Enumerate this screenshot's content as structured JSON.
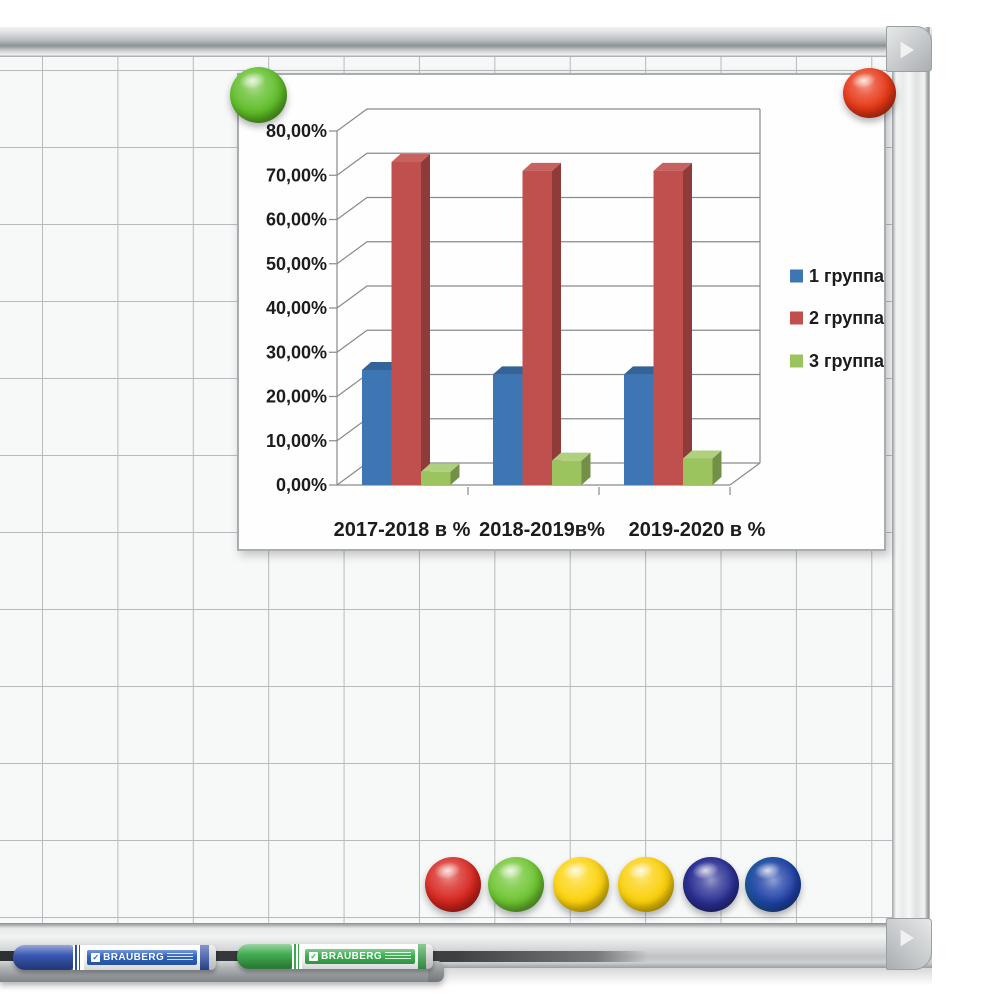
{
  "chart_data": {
    "type": "bar",
    "style": "3d-column",
    "title": "",
    "categories": [
      "2017-2018 в %",
      "2018-2019в%",
      "2019-2020 в %"
    ],
    "series": [
      {
        "name": "1 группа",
        "color": "#3E76B4",
        "values": [
          26,
          25,
          25
        ]
      },
      {
        "name": "2 группа",
        "color": "#C0504D",
        "values": [
          73,
          71,
          71
        ]
      },
      {
        "name": "3 группа",
        "color": "#9BC45E",
        "values": [
          3,
          5.5,
          6
        ]
      }
    ],
    "ylim": [
      0,
      80
    ],
    "ytick_step": 10,
    "ytick_labels": [
      "0,00%",
      "10,00%",
      "20,00%",
      "30,00%",
      "40,00%",
      "50,00%",
      "60,00%",
      "70,00%",
      "80,00%"
    ],
    "legend_position": "right",
    "grid": true,
    "text_color": "#1c1c1e",
    "gridline_color": "#878b8e"
  },
  "board": {
    "surface_color": "#f7f8f8",
    "grid_line_color": "#b7bbbd",
    "frame_color": "#c8cbcd"
  },
  "magnets": {
    "top": [
      {
        "name": "green-magnet-top-left",
        "color": "#5fbd27"
      },
      {
        "name": "red-magnet-top-right",
        "color": "#e63615"
      }
    ],
    "bottom": [
      {
        "name": "red-magnet-bottom",
        "color": "#d7251f"
      },
      {
        "name": "green-magnet-bottom",
        "color": "#6ec531"
      },
      {
        "name": "yellow-magnet-bottom-1",
        "color": "#fdd30b"
      },
      {
        "name": "yellow-magnet-bottom-2",
        "color": "#fbd008"
      },
      {
        "name": "navy-magnet-bottom",
        "color": "#2a2f93"
      },
      {
        "name": "blue-magnet-bottom",
        "color": "#1e40a6"
      }
    ]
  },
  "markers": [
    {
      "brand": "BRAUBERG",
      "ink": "blue",
      "body_color": "#3050ae"
    },
    {
      "brand": "BRAUBERG",
      "ink": "green",
      "body_color": "#3aa94a"
    }
  ]
}
